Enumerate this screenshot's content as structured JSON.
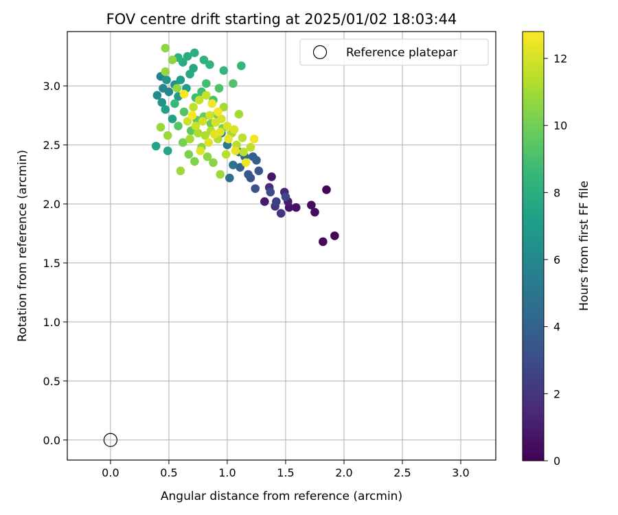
{
  "chart_data": {
    "type": "scatter",
    "title": "FOV centre drift starting at 2025/01/02 18:03:44",
    "xlabel": "Angular distance from reference (arcmin)",
    "ylabel": "Rotation from reference (arcmin)",
    "xlim": [
      -0.37,
      3.3
    ],
    "ylim": [
      -0.17,
      3.46
    ],
    "xticks": [
      0.0,
      0.5,
      1.0,
      1.5,
      2.0,
      2.5,
      3.0
    ],
    "xtick_labels": [
      "0.0",
      "0.5",
      "1.0",
      "1.5",
      "2.0",
      "2.5",
      "3.0"
    ],
    "yticks": [
      0.0,
      0.5,
      1.0,
      1.5,
      2.0,
      2.5,
      3.0
    ],
    "ytick_labels": [
      "0.0",
      "0.5",
      "1.0",
      "1.5",
      "2.0",
      "2.5",
      "3.0"
    ],
    "grid": true,
    "legend": {
      "position": "top-right",
      "entries": [
        {
          "label": "Reference platepar",
          "marker": "open-circle"
        }
      ]
    },
    "reference_point": {
      "x": 0.0,
      "y": 0.0
    },
    "colorbar": {
      "label": "Hours from first FF file",
      "colormap": "viridis",
      "range": [
        0,
        12.8
      ],
      "ticks": [
        0,
        2,
        4,
        6,
        8,
        10,
        12
      ],
      "tick_labels": [
        "0",
        "2",
        "4",
        "6",
        "8",
        "10",
        "12"
      ]
    },
    "colormap_stops": [
      "#440154",
      "#482878",
      "#3e4989",
      "#31688e",
      "#26828e",
      "#1f9e89",
      "#35b779",
      "#6ece58",
      "#b5de2b",
      "#fde725"
    ],
    "series": [
      {
        "points": [
          [
            1.85,
            2.12,
            0.1
          ],
          [
            1.92,
            1.73,
            0.2
          ],
          [
            1.82,
            1.68,
            0.3
          ],
          [
            1.75,
            1.93,
            0.4
          ],
          [
            1.72,
            1.99,
            0.5
          ],
          [
            1.59,
            1.97,
            0.6
          ],
          [
            1.53,
            1.97,
            0.7
          ],
          [
            1.38,
            2.23,
            0.8
          ],
          [
            1.32,
            2.02,
            0.9
          ],
          [
            1.52,
            2.02,
            1.0
          ],
          [
            1.49,
            2.1,
            1.3
          ],
          [
            1.36,
            2.14,
            1.6
          ],
          [
            1.46,
            1.92,
            1.9
          ],
          [
            1.41,
            1.98,
            2.1
          ],
          [
            1.42,
            2.02,
            2.4
          ],
          [
            1.5,
            2.06,
            2.7
          ],
          [
            1.37,
            2.1,
            3.0
          ],
          [
            1.24,
            2.13,
            3.2
          ],
          [
            1.2,
            2.22,
            3.3
          ],
          [
            1.27,
            2.28,
            3.5
          ],
          [
            1.18,
            2.25,
            3.6
          ],
          [
            1.25,
            2.37,
            3.7
          ],
          [
            1.22,
            2.4,
            3.9
          ],
          [
            1.11,
            2.31,
            4.0
          ],
          [
            1.15,
            2.4,
            4.2
          ],
          [
            1.1,
            2.44,
            4.4
          ],
          [
            1.02,
            2.22,
            4.6
          ],
          [
            1.05,
            2.33,
            4.8
          ],
          [
            1.08,
            2.45,
            5.0
          ],
          [
            1.0,
            2.5,
            5.2
          ],
          [
            0.95,
            2.6,
            5.4
          ],
          [
            0.43,
            3.08,
            5.6
          ],
          [
            0.5,
            2.95,
            5.8
          ],
          [
            0.45,
            2.98,
            6.0
          ],
          [
            0.4,
            2.92,
            6.2
          ],
          [
            0.55,
            3.01,
            6.4
          ],
          [
            0.44,
            2.86,
            6.5
          ],
          [
            0.48,
            3.05,
            6.7
          ],
          [
            0.58,
            2.91,
            6.8
          ],
          [
            0.6,
            3.05,
            7.0
          ],
          [
            0.65,
            2.98,
            7.1
          ],
          [
            0.47,
            2.8,
            7.2
          ],
          [
            0.53,
            2.72,
            7.3
          ],
          [
            0.39,
            2.49,
            7.4
          ],
          [
            0.49,
            2.45,
            7.5
          ],
          [
            0.68,
            3.1,
            7.6
          ],
          [
            0.71,
            3.15,
            7.7
          ],
          [
            0.62,
            3.2,
            7.8
          ],
          [
            0.66,
            3.25,
            7.9
          ],
          [
            0.72,
            3.28,
            8.0
          ],
          [
            0.58,
            3.24,
            8.1
          ],
          [
            0.8,
            3.22,
            8.2
          ],
          [
            0.85,
            3.18,
            8.3
          ],
          [
            0.97,
            3.13,
            8.4
          ],
          [
            1.12,
            3.17,
            8.5
          ],
          [
            0.55,
            2.85,
            8.6
          ],
          [
            0.73,
            2.9,
            8.7
          ],
          [
            0.78,
            2.95,
            8.8
          ],
          [
            0.82,
            3.02,
            8.9
          ],
          [
            0.88,
            2.88,
            9.0
          ],
          [
            0.93,
            2.98,
            9.1
          ],
          [
            1.05,
            3.02,
            9.2
          ],
          [
            0.63,
            2.78,
            9.3
          ],
          [
            0.58,
            2.66,
            9.4
          ],
          [
            0.69,
            2.62,
            9.5
          ],
          [
            0.74,
            2.71,
            9.6
          ],
          [
            0.8,
            2.74,
            9.7
          ],
          [
            0.86,
            2.68,
            9.8
          ],
          [
            0.91,
            2.76,
            9.9
          ],
          [
            0.96,
            2.64,
            10.0
          ],
          [
            0.62,
            2.52,
            10.1
          ],
          [
            0.67,
            2.42,
            10.2
          ],
          [
            0.72,
            2.36,
            10.3
          ],
          [
            0.78,
            2.48,
            10.4
          ],
          [
            0.83,
            2.4,
            10.5
          ],
          [
            0.88,
            2.35,
            10.5
          ],
          [
            0.47,
            3.32,
            10.6
          ],
          [
            0.53,
            3.22,
            10.6
          ],
          [
            0.57,
            2.98,
            10.7
          ],
          [
            0.47,
            3.12,
            10.7
          ],
          [
            0.43,
            2.65,
            10.8
          ],
          [
            0.49,
            2.58,
            10.8
          ],
          [
            0.6,
            2.28,
            10.9
          ],
          [
            0.94,
            2.25,
            10.9
          ],
          [
            1.1,
            2.76,
            11.0
          ],
          [
            0.97,
            2.82,
            11.0
          ],
          [
            1.04,
            2.6,
            11.1
          ],
          [
            0.68,
            2.55,
            11.1
          ],
          [
            0.75,
            2.6,
            11.2
          ],
          [
            0.81,
            2.58,
            11.2
          ],
          [
            0.86,
            2.62,
            11.3
          ],
          [
            0.92,
            2.55,
            11.3
          ],
          [
            0.99,
            2.42,
            11.4
          ],
          [
            1.08,
            2.5,
            11.4
          ],
          [
            1.14,
            2.44,
            11.5
          ],
          [
            1.2,
            2.48,
            11.5
          ],
          [
            1.13,
            2.56,
            11.6
          ],
          [
            0.71,
            2.82,
            11.6
          ],
          [
            0.76,
            2.88,
            11.7
          ],
          [
            0.82,
            2.92,
            11.7
          ],
          [
            0.66,
            2.7,
            11.8
          ],
          [
            0.73,
            2.66,
            11.8
          ],
          [
            0.79,
            2.7,
            11.9
          ],
          [
            0.85,
            2.75,
            11.9
          ],
          [
            0.9,
            2.69,
            12.0
          ],
          [
            0.95,
            2.72,
            12.0
          ],
          [
            1.0,
            2.66,
            12.1
          ],
          [
            1.06,
            2.63,
            12.1
          ],
          [
            0.77,
            2.45,
            12.2
          ],
          [
            0.84,
            2.52,
            12.2
          ],
          [
            0.89,
            2.59,
            12.3
          ],
          [
            0.94,
            2.61,
            12.3
          ],
          [
            1.01,
            2.55,
            12.4
          ],
          [
            1.07,
            2.45,
            12.4
          ],
          [
            1.16,
            2.35,
            12.5
          ],
          [
            1.23,
            2.55,
            12.5
          ],
          [
            0.87,
            2.85,
            12.6
          ],
          [
            0.92,
            2.78,
            12.6
          ],
          [
            0.7,
            2.75,
            12.7
          ],
          [
            0.63,
            2.93,
            12.7
          ]
        ]
      }
    ]
  }
}
